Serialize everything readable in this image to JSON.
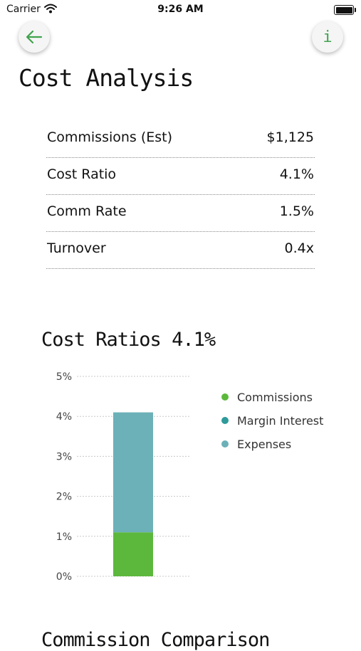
{
  "status_bar": {
    "carrier": "Carrier",
    "time": "9:26 AM"
  },
  "nav": {
    "back_icon": "arrow-left-icon",
    "info_label": "i",
    "accent": "#3fa34d"
  },
  "page": {
    "title": "Cost Analysis"
  },
  "summary": {
    "rows": [
      {
        "label": "Commissions (Est)",
        "value": "$1,125"
      },
      {
        "label": "Cost Ratio",
        "value": "4.1%"
      },
      {
        "label": "Comm Rate",
        "value": "1.5%"
      },
      {
        "label": "Turnover",
        "value": "0.4x"
      }
    ]
  },
  "chart_title": "Cost Ratios 4.1%",
  "chart_data": {
    "type": "bar",
    "stacked": true,
    "title": "Cost Ratios 4.1%",
    "categories": [
      ""
    ],
    "series": [
      {
        "name": "Commissions",
        "values": [
          1.1
        ],
        "color": "#5cb83c"
      },
      {
        "name": "Margin Interest",
        "values": [
          0
        ],
        "color": "#2e9a9a"
      },
      {
        "name": "Expenses",
        "values": [
          3.0
        ],
        "color": "#6cb0b8"
      }
    ],
    "y_ticks": [
      "0%",
      "1%",
      "2%",
      "3%",
      "4%",
      "5%"
    ],
    "ylim": [
      0,
      5
    ],
    "grid": "dotted horizontal",
    "legend": "right"
  },
  "next_section": {
    "title": "Commission Comparison"
  }
}
